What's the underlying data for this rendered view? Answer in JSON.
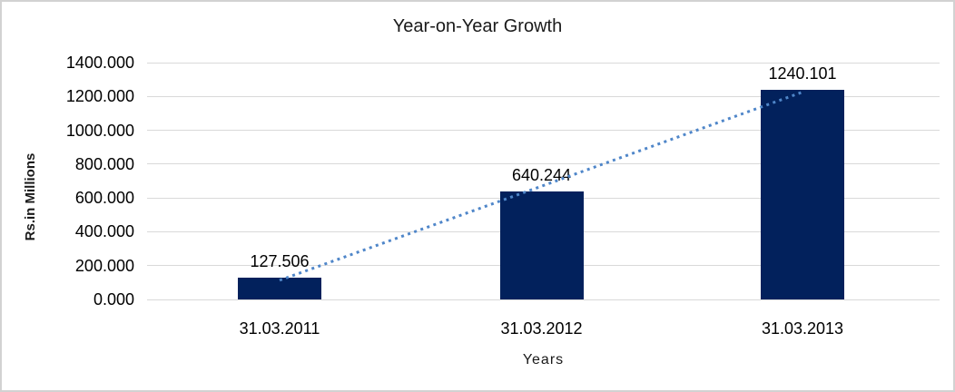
{
  "chart_data": {
    "type": "bar",
    "title": "Year-on-Year Growth",
    "xlabel": "Years",
    "ylabel": "Rs.in Millions",
    "categories": [
      "31.03.2011",
      "31.03.2012",
      "31.03.2013"
    ],
    "values": [
      127.506,
      640.244,
      1240.101
    ],
    "data_labels": [
      "127.506",
      "640.244",
      "1240.101"
    ],
    "ylim": [
      0,
      1400
    ],
    "ytick_labels": [
      "1400.000",
      "1200.000",
      "1000.000",
      "800.000",
      "600.000",
      "400.000",
      "200.000",
      "0.000"
    ],
    "grid": "horizontal-only",
    "legend": "none",
    "colors": {
      "bar_fill": "#02215c",
      "gridline": "#d9d9d9",
      "trendline": "#4f86c9",
      "frame_border": "#d2d2d2",
      "text": "#000000"
    },
    "trendline": {
      "type": "linear",
      "style": "dotted",
      "fitted_values": [
        113.0,
        669.3,
        1225.6
      ]
    }
  }
}
